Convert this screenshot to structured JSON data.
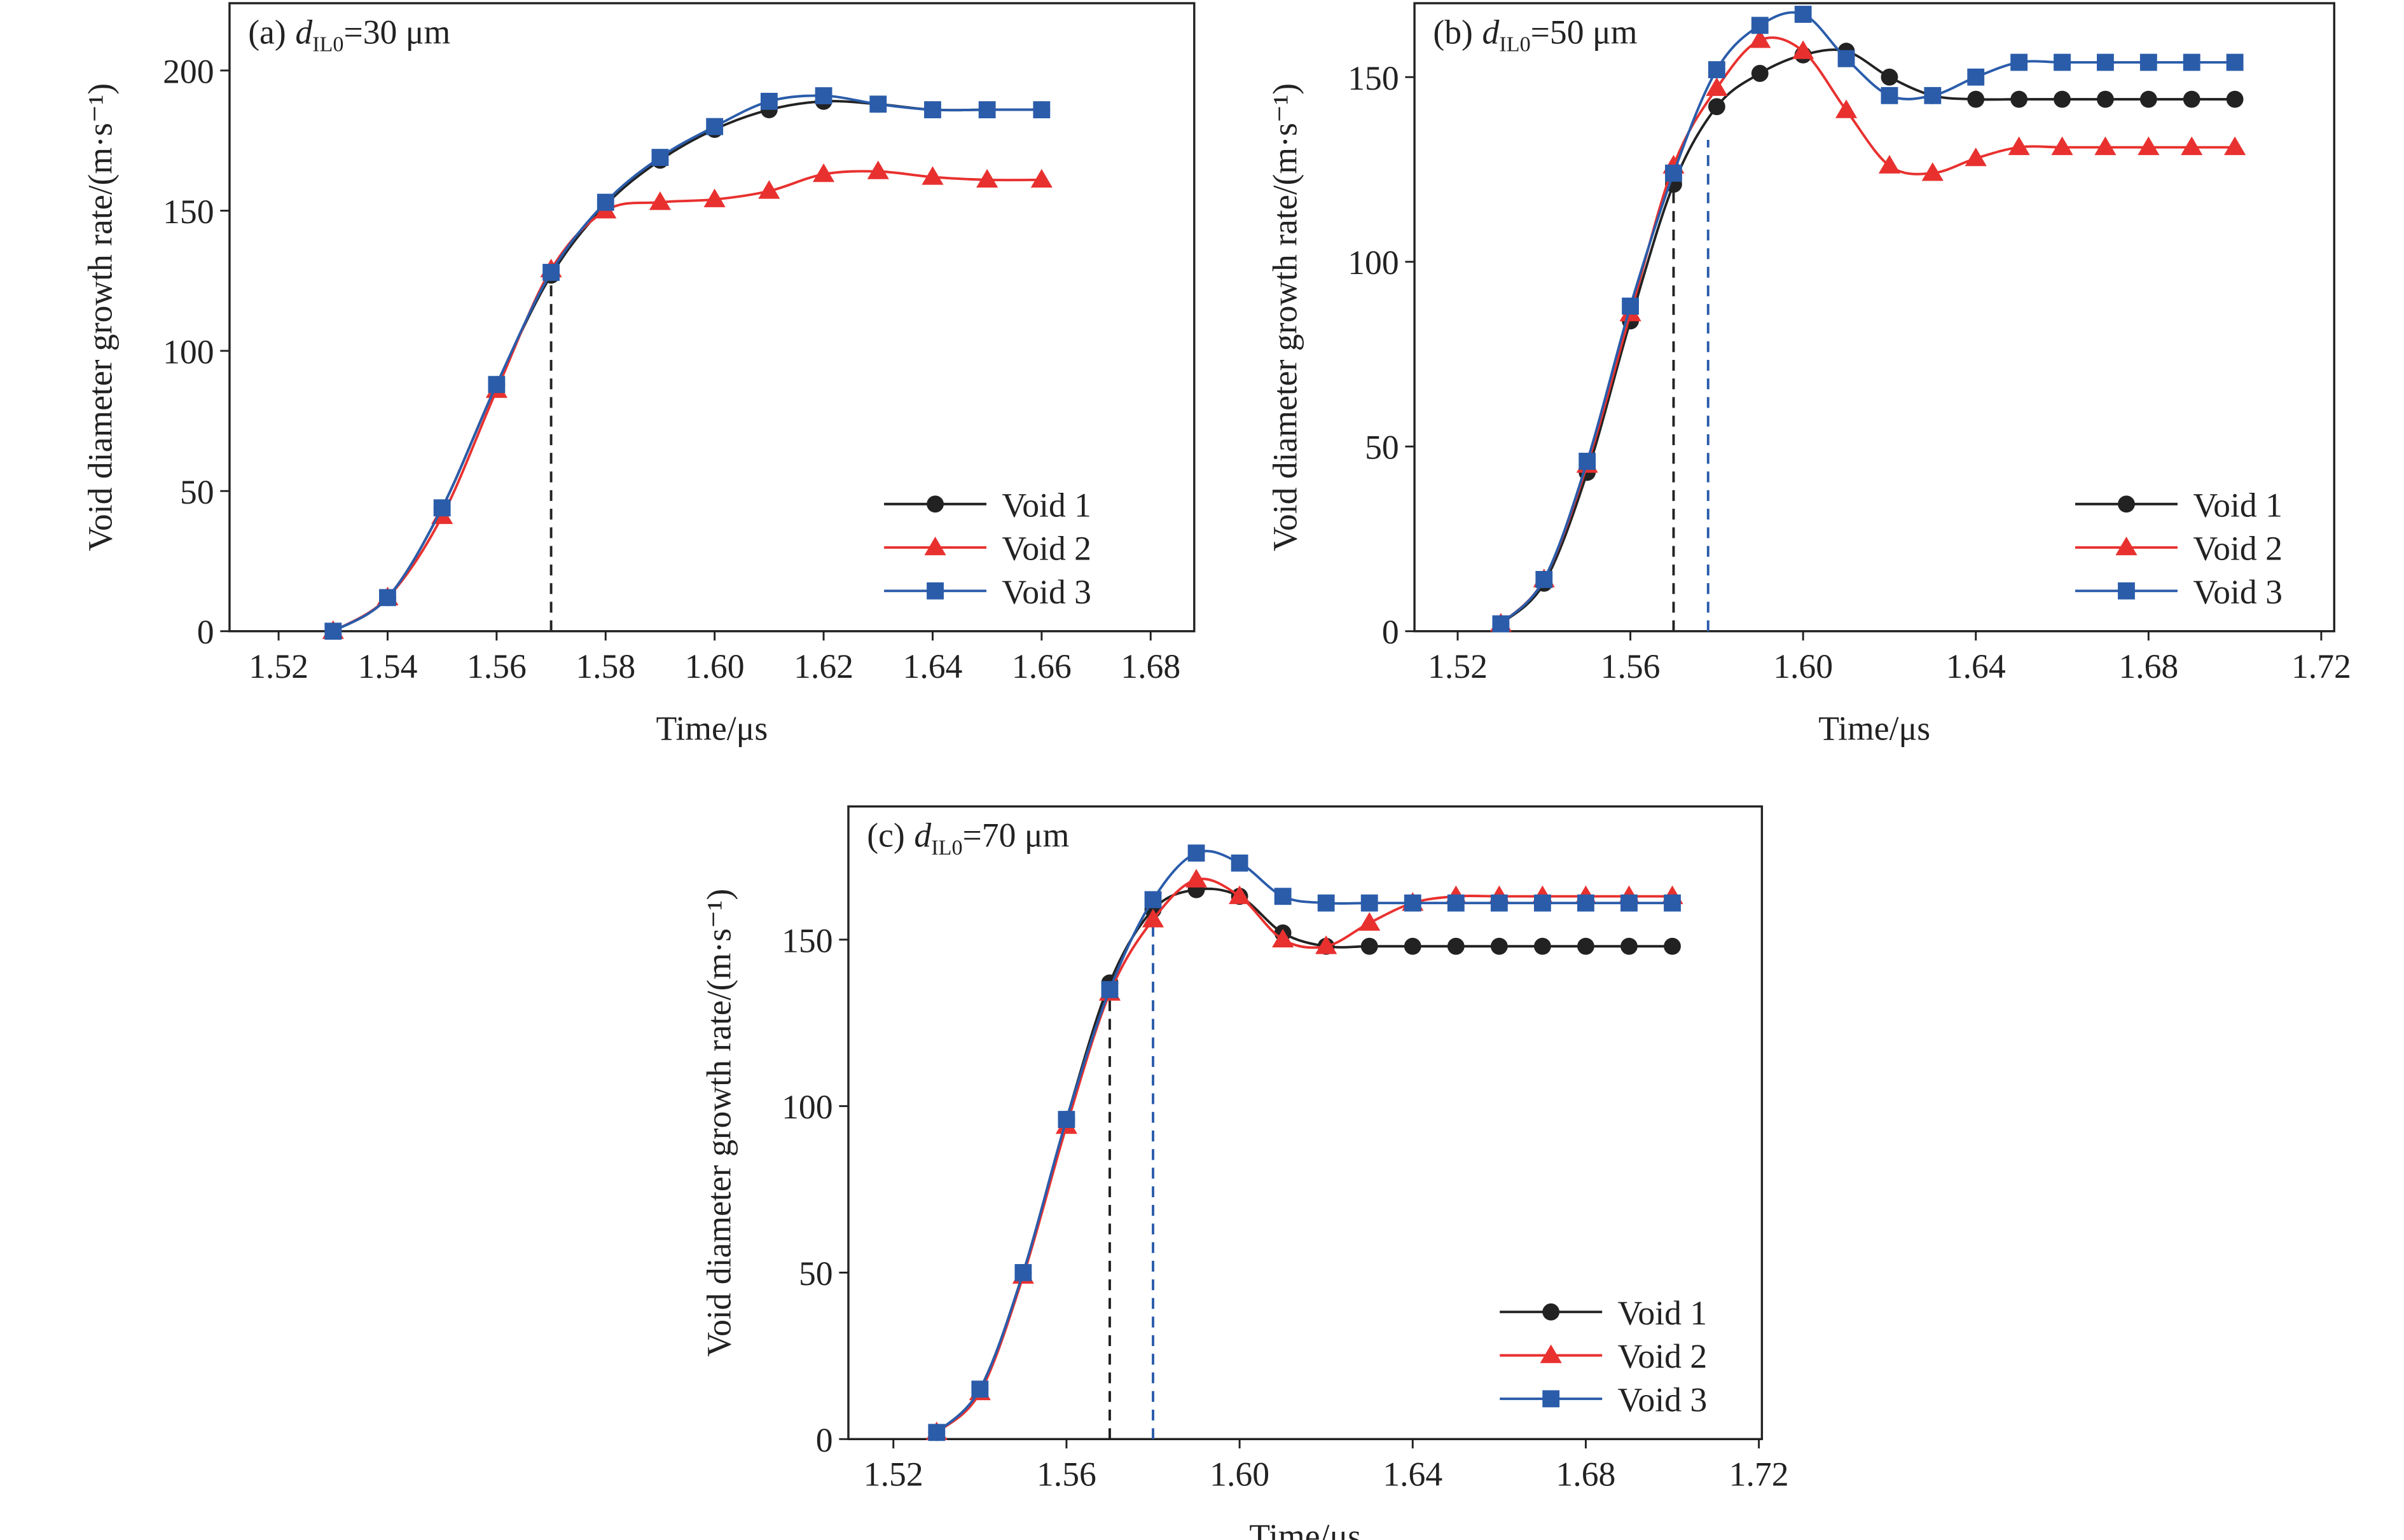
{
  "chart_data": [
    {
      "type": "line",
      "title": {
        "prefix": "(a)",
        "symbol": "d",
        "subscript": "IL0",
        "suffix": "=30 μm"
      },
      "xlabel": "Time/μs",
      "ylabel": "Void diameter growth rate/(m·s⁻¹)",
      "x": [
        1.53,
        1.54,
        1.55,
        1.56,
        1.57,
        1.58,
        1.59,
        1.6,
        1.61,
        1.62,
        1.63,
        1.64,
        1.65,
        1.66
      ],
      "series": [
        {
          "name": "Void 1",
          "color": "#222222",
          "marker": "circle",
          "values": [
            0,
            12,
            44,
            88,
            127,
            152,
            168,
            179,
            186,
            189,
            188,
            186,
            186,
            186
          ]
        },
        {
          "name": "Void 2",
          "color": "#e8312f",
          "marker": "triangle",
          "values": [
            0,
            12,
            41,
            86,
            129,
            150,
            153,
            154,
            157,
            163,
            164,
            162,
            161,
            161
          ]
        },
        {
          "name": "Void 3",
          "color": "#2a5caa",
          "marker": "square",
          "values": [
            0,
            12,
            44,
            88,
            128,
            153,
            169,
            180,
            189,
            191,
            188,
            186,
            186,
            186
          ]
        }
      ],
      "vlines": [
        {
          "x": 1.57,
          "ymax": 127,
          "color": "#222222"
        }
      ],
      "xlim": [
        1.511,
        1.688
      ],
      "ylim": [
        0,
        224
      ],
      "xticks": [
        1.52,
        1.54,
        1.56,
        1.58,
        {
          "value": 1.6,
          "label": "1.60"
        },
        1.62,
        1.64,
        1.66,
        1.68
      ],
      "yticks": [
        0,
        50,
        100,
        150,
        200
      ],
      "legend": "lower right"
    },
    {
      "type": "line",
      "title": {
        "prefix": "(b)",
        "symbol": "d",
        "subscript": "IL0",
        "suffix": "=50 μm"
      },
      "xlabel": "Time/μs",
      "ylabel": "Void diameter growth rate/(m·s⁻¹)",
      "x": [
        1.53,
        1.54,
        1.55,
        1.56,
        1.57,
        1.58,
        1.59,
        1.6,
        1.61,
        1.62,
        1.63,
        1.64,
        1.65,
        1.66,
        1.67,
        1.68,
        1.69,
        1.7
      ],
      "series": [
        {
          "name": "Void 1",
          "color": "#222222",
          "marker": "circle",
          "values": [
            2,
            13,
            43,
            84,
            121,
            142,
            151,
            156,
            157,
            150,
            145,
            144,
            144,
            144,
            144,
            144,
            144,
            144
          ]
        },
        {
          "name": "Void 2",
          "color": "#e8312f",
          "marker": "triangle",
          "values": [
            2,
            14,
            45,
            86,
            126,
            147,
            160,
            157,
            141,
            126,
            124,
            128,
            131,
            131,
            131,
            131,
            131,
            131
          ]
        },
        {
          "name": "Void 3",
          "color": "#2a5caa",
          "marker": "square",
          "values": [
            2,
            14,
            46,
            88,
            124,
            152,
            164,
            167,
            155,
            145,
            145,
            150,
            154,
            154,
            154,
            154,
            154,
            154
          ]
        }
      ],
      "vlines": [
        {
          "x": 1.57,
          "ymax": 121,
          "color": "#222222"
        },
        {
          "x": 1.578,
          "ymax": 133,
          "color": "#2a5caa"
        }
      ],
      "xlim": [
        1.51,
        1.723
      ],
      "ylim": [
        0,
        170
      ],
      "xticks": [
        1.52,
        1.56,
        {
          "value": 1.6,
          "label": "1.60"
        },
        1.64,
        1.68,
        1.72
      ],
      "yticks": [
        0,
        50,
        100,
        150
      ],
      "legend": "lower right"
    },
    {
      "type": "line",
      "title": {
        "prefix": "(c)",
        "symbol": "d",
        "subscript": "IL0",
        "suffix": "=70 μm"
      },
      "xlabel": "Time/μs",
      "ylabel": "Void diameter growth rate/(m·s⁻¹)",
      "x": [
        1.53,
        1.54,
        1.55,
        1.56,
        1.57,
        1.58,
        1.59,
        1.6,
        1.61,
        1.62,
        1.63,
        1.64,
        1.65,
        1.66,
        1.67,
        1.68,
        1.69,
        1.7
      ],
      "series": [
        {
          "name": "Void 1",
          "color": "#222222",
          "marker": "circle",
          "values": [
            2,
            15,
            50,
            96,
            137,
            159,
            165,
            163,
            152,
            148,
            148,
            148,
            148,
            148,
            148,
            148,
            148,
            148
          ]
        },
        {
          "name": "Void 2",
          "color": "#e8312f",
          "marker": "triangle",
          "values": [
            2,
            14,
            49,
            94,
            134,
            156,
            168,
            163,
            150,
            148,
            155,
            161,
            163,
            163,
            163,
            163,
            163,
            163
          ]
        },
        {
          "name": "Void 3",
          "color": "#2a5caa",
          "marker": "square",
          "values": [
            2,
            15,
            50,
            96,
            135,
            162,
            176,
            173,
            163,
            161,
            161,
            161,
            161,
            161,
            161,
            161,
            161,
            161
          ]
        }
      ],
      "vlines": [
        {
          "x": 1.57,
          "ymax": 135,
          "color": "#222222"
        },
        {
          "x": 1.58,
          "ymax": 157,
          "color": "#2a5caa"
        }
      ],
      "xlim": [
        1.5096,
        1.7207
      ],
      "ylim": [
        0,
        190
      ],
      "xticks": [
        1.52,
        1.56,
        {
          "value": 1.6,
          "label": "1.60"
        },
        1.64,
        1.68,
        1.72
      ],
      "yticks": [
        0,
        50,
        100,
        150
      ],
      "legend": "lower right"
    }
  ]
}
